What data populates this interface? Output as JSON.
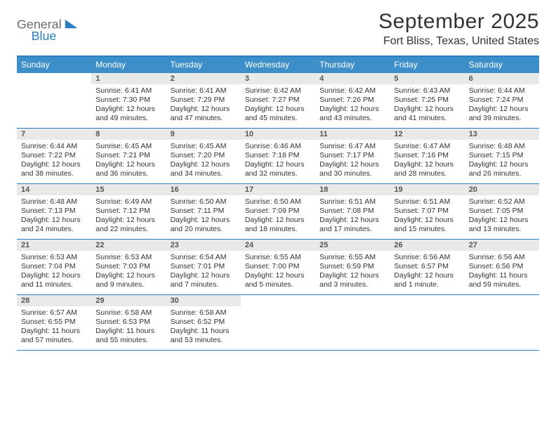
{
  "logo": {
    "word1": "General",
    "word2": "Blue",
    "word1_color": "#6b6b6b",
    "word2_color": "#2a7fc1"
  },
  "title": "September 2025",
  "location": "Fort Bliss, Texas, United States",
  "styles": {
    "dow_bg": "#3d8fc9",
    "dow_fg": "#ffffff",
    "daynum_bg": "#e9e9e9",
    "daynum_fg": "#555555",
    "rule_color": "#2a7fc1",
    "body_font_size": 10.5,
    "cell_min_height": 78
  },
  "dows": [
    "Sunday",
    "Monday",
    "Tuesday",
    "Wednesday",
    "Thursday",
    "Friday",
    "Saturday"
  ],
  "weeks": [
    [
      {
        "num": "",
        "lines": []
      },
      {
        "num": "1",
        "lines": [
          "Sunrise: 6:41 AM",
          "Sunset: 7:30 PM",
          "Daylight: 12 hours and 49 minutes."
        ]
      },
      {
        "num": "2",
        "lines": [
          "Sunrise: 6:41 AM",
          "Sunset: 7:29 PM",
          "Daylight: 12 hours and 47 minutes."
        ]
      },
      {
        "num": "3",
        "lines": [
          "Sunrise: 6:42 AM",
          "Sunset: 7:27 PM",
          "Daylight: 12 hours and 45 minutes."
        ]
      },
      {
        "num": "4",
        "lines": [
          "Sunrise: 6:42 AM",
          "Sunset: 7:26 PM",
          "Daylight: 12 hours and 43 minutes."
        ]
      },
      {
        "num": "5",
        "lines": [
          "Sunrise: 6:43 AM",
          "Sunset: 7:25 PM",
          "Daylight: 12 hours and 41 minutes."
        ]
      },
      {
        "num": "6",
        "lines": [
          "Sunrise: 6:44 AM",
          "Sunset: 7:24 PM",
          "Daylight: 12 hours and 39 minutes."
        ]
      }
    ],
    [
      {
        "num": "7",
        "lines": [
          "Sunrise: 6:44 AM",
          "Sunset: 7:22 PM",
          "Daylight: 12 hours and 38 minutes."
        ]
      },
      {
        "num": "8",
        "lines": [
          "Sunrise: 6:45 AM",
          "Sunset: 7:21 PM",
          "Daylight: 12 hours and 36 minutes."
        ]
      },
      {
        "num": "9",
        "lines": [
          "Sunrise: 6:45 AM",
          "Sunset: 7:20 PM",
          "Daylight: 12 hours and 34 minutes."
        ]
      },
      {
        "num": "10",
        "lines": [
          "Sunrise: 6:46 AM",
          "Sunset: 7:18 PM",
          "Daylight: 12 hours and 32 minutes."
        ]
      },
      {
        "num": "11",
        "lines": [
          "Sunrise: 6:47 AM",
          "Sunset: 7:17 PM",
          "Daylight: 12 hours and 30 minutes."
        ]
      },
      {
        "num": "12",
        "lines": [
          "Sunrise: 6:47 AM",
          "Sunset: 7:16 PM",
          "Daylight: 12 hours and 28 minutes."
        ]
      },
      {
        "num": "13",
        "lines": [
          "Sunrise: 6:48 AM",
          "Sunset: 7:15 PM",
          "Daylight: 12 hours and 26 minutes."
        ]
      }
    ],
    [
      {
        "num": "14",
        "lines": [
          "Sunrise: 6:48 AM",
          "Sunset: 7:13 PM",
          "Daylight: 12 hours and 24 minutes."
        ]
      },
      {
        "num": "15",
        "lines": [
          "Sunrise: 6:49 AM",
          "Sunset: 7:12 PM",
          "Daylight: 12 hours and 22 minutes."
        ]
      },
      {
        "num": "16",
        "lines": [
          "Sunrise: 6:50 AM",
          "Sunset: 7:11 PM",
          "Daylight: 12 hours and 20 minutes."
        ]
      },
      {
        "num": "17",
        "lines": [
          "Sunrise: 6:50 AM",
          "Sunset: 7:09 PM",
          "Daylight: 12 hours and 18 minutes."
        ]
      },
      {
        "num": "18",
        "lines": [
          "Sunrise: 6:51 AM",
          "Sunset: 7:08 PM",
          "Daylight: 12 hours and 17 minutes."
        ]
      },
      {
        "num": "19",
        "lines": [
          "Sunrise: 6:51 AM",
          "Sunset: 7:07 PM",
          "Daylight: 12 hours and 15 minutes."
        ]
      },
      {
        "num": "20",
        "lines": [
          "Sunrise: 6:52 AM",
          "Sunset: 7:05 PM",
          "Daylight: 12 hours and 13 minutes."
        ]
      }
    ],
    [
      {
        "num": "21",
        "lines": [
          "Sunrise: 6:53 AM",
          "Sunset: 7:04 PM",
          "Daylight: 12 hours and 11 minutes."
        ]
      },
      {
        "num": "22",
        "lines": [
          "Sunrise: 6:53 AM",
          "Sunset: 7:03 PM",
          "Daylight: 12 hours and 9 minutes."
        ]
      },
      {
        "num": "23",
        "lines": [
          "Sunrise: 6:54 AM",
          "Sunset: 7:01 PM",
          "Daylight: 12 hours and 7 minutes."
        ]
      },
      {
        "num": "24",
        "lines": [
          "Sunrise: 6:55 AM",
          "Sunset: 7:00 PM",
          "Daylight: 12 hours and 5 minutes."
        ]
      },
      {
        "num": "25",
        "lines": [
          "Sunrise: 6:55 AM",
          "Sunset: 6:59 PM",
          "Daylight: 12 hours and 3 minutes."
        ]
      },
      {
        "num": "26",
        "lines": [
          "Sunrise: 6:56 AM",
          "Sunset: 6:57 PM",
          "Daylight: 12 hours and 1 minute."
        ]
      },
      {
        "num": "27",
        "lines": [
          "Sunrise: 6:56 AM",
          "Sunset: 6:56 PM",
          "Daylight: 11 hours and 59 minutes."
        ]
      }
    ],
    [
      {
        "num": "28",
        "lines": [
          "Sunrise: 6:57 AM",
          "Sunset: 6:55 PM",
          "Daylight: 11 hours and 57 minutes."
        ]
      },
      {
        "num": "29",
        "lines": [
          "Sunrise: 6:58 AM",
          "Sunset: 6:53 PM",
          "Daylight: 11 hours and 55 minutes."
        ]
      },
      {
        "num": "30",
        "lines": [
          "Sunrise: 6:58 AM",
          "Sunset: 6:52 PM",
          "Daylight: 11 hours and 53 minutes."
        ]
      },
      {
        "num": "",
        "lines": []
      },
      {
        "num": "",
        "lines": []
      },
      {
        "num": "",
        "lines": []
      },
      {
        "num": "",
        "lines": []
      }
    ]
  ]
}
